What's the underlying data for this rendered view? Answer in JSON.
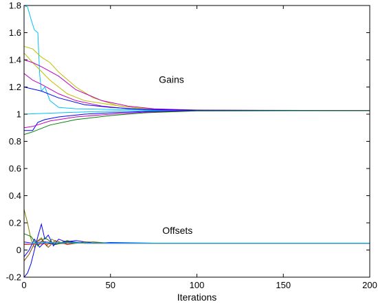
{
  "chart_data": {
    "type": "line",
    "title": "",
    "xlabel": "Iterations",
    "ylabel": "",
    "xlim": [
      0,
      200
    ],
    "ylim": [
      -0.2,
      1.8
    ],
    "grid": false,
    "legend": "none",
    "xticks": [
      {
        "value": 0,
        "label": "0"
      },
      {
        "value": 50,
        "label": "50"
      },
      {
        "value": 100,
        "label": "100"
      },
      {
        "value": 150,
        "label": "150"
      },
      {
        "value": 200,
        "label": "200"
      }
    ],
    "yticks": [
      {
        "value": -0.2,
        "label": "-0.2"
      },
      {
        "value": 0,
        "label": "0"
      },
      {
        "value": 0.2,
        "label": "0.2"
      },
      {
        "value": 0.4,
        "label": "0.4"
      },
      {
        "value": 0.6,
        "label": "0.6"
      },
      {
        "value": 0.8,
        "label": "0.8"
      },
      {
        "value": 1,
        "label": "1"
      },
      {
        "value": 1.2,
        "label": "1.2"
      },
      {
        "value": 1.4,
        "label": "1.4"
      },
      {
        "value": 1.6,
        "label": "1.6"
      },
      {
        "value": 1.8,
        "label": "1.8"
      }
    ],
    "annotations": [
      {
        "text": "Gains",
        "x": 78,
        "y": 1.23
      },
      {
        "text": "Offsets",
        "x": 80,
        "y": 0.12
      }
    ],
    "series": [
      {
        "group": "gains",
        "color": "#00bfff",
        "points": [
          [
            0,
            1.8
          ],
          [
            2,
            1.79
          ],
          [
            4,
            1.7
          ],
          [
            6,
            1.62
          ],
          [
            8,
            1.6
          ],
          [
            9,
            1.3
          ],
          [
            10,
            1.17
          ],
          [
            12,
            1.2
          ],
          [
            15,
            1.1
          ],
          [
            20,
            1.05
          ],
          [
            30,
            1.04
          ],
          [
            50,
            1.035
          ],
          [
            80,
            1.03
          ],
          [
            120,
            1.028
          ],
          [
            200,
            1.027
          ]
        ]
      },
      {
        "group": "gains",
        "color": "#00bfff",
        "points": [
          [
            0,
            1.0
          ],
          [
            10,
            1.005
          ],
          [
            25,
            1.012
          ],
          [
            40,
            1.018
          ],
          [
            60,
            1.024
          ],
          [
            80,
            1.026
          ],
          [
            120,
            1.027
          ],
          [
            200,
            1.027
          ]
        ]
      },
      {
        "group": "gains",
        "color": "#bfbf00",
        "points": [
          [
            0,
            1.5
          ],
          [
            5,
            1.48
          ],
          [
            10,
            1.42
          ],
          [
            15,
            1.38
          ],
          [
            20,
            1.31
          ],
          [
            30,
            1.2
          ],
          [
            40,
            1.12
          ],
          [
            55,
            1.06
          ],
          [
            70,
            1.04
          ],
          [
            90,
            1.032
          ],
          [
            120,
            1.028
          ],
          [
            200,
            1.027
          ]
        ]
      },
      {
        "group": "gains",
        "color": "#bfbf00",
        "points": [
          [
            0,
            1.45
          ],
          [
            5,
            1.38
          ],
          [
            15,
            1.25
          ],
          [
            25,
            1.15
          ],
          [
            35,
            1.1
          ],
          [
            50,
            1.07
          ],
          [
            65,
            1.045
          ],
          [
            80,
            1.035
          ],
          [
            110,
            1.029
          ],
          [
            200,
            1.027
          ]
        ]
      },
      {
        "group": "gains",
        "color": "#bf00bf",
        "points": [
          [
            0,
            1.4
          ],
          [
            5,
            1.38
          ],
          [
            10,
            1.35
          ],
          [
            20,
            1.28
          ],
          [
            30,
            1.18
          ],
          [
            45,
            1.1
          ],
          [
            60,
            1.06
          ],
          [
            75,
            1.04
          ],
          [
            100,
            1.03
          ],
          [
            200,
            1.027
          ]
        ]
      },
      {
        "group": "gains",
        "color": "#bf00bf",
        "points": [
          [
            0,
            1.3
          ],
          [
            5,
            1.25
          ],
          [
            10,
            1.22
          ],
          [
            20,
            1.15
          ],
          [
            30,
            1.1
          ],
          [
            45,
            1.06
          ],
          [
            60,
            1.04
          ],
          [
            80,
            1.032
          ],
          [
            110,
            1.028
          ],
          [
            200,
            1.027
          ]
        ]
      },
      {
        "group": "gains",
        "color": "#0000ff",
        "points": [
          [
            0,
            1.2
          ],
          [
            10,
            1.17
          ],
          [
            20,
            1.12
          ],
          [
            35,
            1.07
          ],
          [
            50,
            1.05
          ],
          [
            70,
            1.035
          ],
          [
            100,
            1.029
          ],
          [
            200,
            1.027
          ]
        ]
      },
      {
        "group": "gains",
        "color": "#0000ff",
        "points": [
          [
            0,
            0.88
          ],
          [
            5,
            0.88
          ],
          [
            8,
            0.94
          ],
          [
            12,
            0.96
          ],
          [
            20,
            0.98
          ],
          [
            35,
            1.0
          ],
          [
            50,
            1.01
          ],
          [
            70,
            1.02
          ],
          [
            100,
            1.026
          ],
          [
            200,
            1.027
          ]
        ]
      },
      {
        "group": "gains",
        "color": "#bf00bf",
        "points": [
          [
            0,
            0.9
          ],
          [
            5,
            0.91
          ],
          [
            15,
            0.95
          ],
          [
            30,
            0.98
          ],
          [
            50,
            1.0
          ],
          [
            70,
            1.015
          ],
          [
            100,
            1.025
          ],
          [
            200,
            1.027
          ]
        ]
      },
      {
        "group": "gains",
        "color": "#008000",
        "points": [
          [
            0,
            0.85
          ],
          [
            5,
            0.87
          ],
          [
            15,
            0.92
          ],
          [
            30,
            0.96
          ],
          [
            50,
            0.99
          ],
          [
            70,
            1.01
          ],
          [
            100,
            1.024
          ],
          [
            200,
            1.027
          ]
        ]
      },
      {
        "group": "offsets",
        "color": "#bf00bf",
        "points": [
          [
            0,
            0.06
          ],
          [
            5,
            0.05
          ],
          [
            10,
            0.06
          ],
          [
            20,
            0.055
          ],
          [
            40,
            0.05
          ],
          [
            80,
            0.05
          ],
          [
            200,
            0.05
          ]
        ]
      },
      {
        "group": "offsets",
        "color": "#ff0000",
        "points": [
          [
            0,
            0.04
          ],
          [
            10,
            0.045
          ],
          [
            30,
            0.05
          ],
          [
            60,
            0.05
          ],
          [
            200,
            0.05
          ]
        ]
      },
      {
        "group": "offsets",
        "color": "#808000",
        "points": [
          [
            0,
            0.3
          ],
          [
            2,
            0.2
          ],
          [
            4,
            0.08
          ],
          [
            6,
            0.02
          ],
          [
            8,
            0.07
          ],
          [
            10,
            0.09
          ],
          [
            13,
            0.03
          ],
          [
            16,
            0.08
          ],
          [
            20,
            0.05
          ],
          [
            25,
            0.07
          ],
          [
            30,
            0.05
          ],
          [
            40,
            0.06
          ],
          [
            50,
            0.05
          ],
          [
            80,
            0.05
          ],
          [
            200,
            0.05
          ]
        ]
      },
      {
        "group": "offsets",
        "color": "#0000ff",
        "points": [
          [
            0,
            -0.2
          ],
          [
            2,
            -0.17
          ],
          [
            4,
            -0.1
          ],
          [
            6,
            0.0
          ],
          [
            8,
            0.1
          ],
          [
            10,
            0.19
          ],
          [
            12,
            0.08
          ],
          [
            14,
            0.11
          ],
          [
            17,
            0.03
          ],
          [
            20,
            0.08
          ],
          [
            24,
            0.06
          ],
          [
            30,
            0.07
          ],
          [
            40,
            0.05
          ],
          [
            50,
            0.055
          ],
          [
            80,
            0.05
          ],
          [
            200,
            0.05
          ]
        ]
      },
      {
        "group": "offsets",
        "color": "#0000ff",
        "points": [
          [
            0,
            -0.05
          ],
          [
            3,
            0.0
          ],
          [
            6,
            0.08
          ],
          [
            9,
            0.02
          ],
          [
            12,
            0.06
          ],
          [
            18,
            0.04
          ],
          [
            25,
            0.065
          ],
          [
            35,
            0.05
          ],
          [
            60,
            0.05
          ],
          [
            200,
            0.05
          ]
        ]
      },
      {
        "group": "offsets",
        "color": "#8b4513",
        "points": [
          [
            0,
            -0.08
          ],
          [
            3,
            -0.03
          ],
          [
            6,
            0.05
          ],
          [
            10,
            0.08
          ],
          [
            14,
            0.02
          ],
          [
            18,
            0.07
          ],
          [
            25,
            0.04
          ],
          [
            35,
            0.06
          ],
          [
            50,
            0.05
          ],
          [
            200,
            0.05
          ]
        ]
      },
      {
        "group": "offsets",
        "color": "#008000",
        "points": [
          [
            0,
            0.12
          ],
          [
            4,
            0.1
          ],
          [
            8,
            0.03
          ],
          [
            12,
            0.09
          ],
          [
            18,
            0.04
          ],
          [
            25,
            0.06
          ],
          [
            35,
            0.05
          ],
          [
            60,
            0.05
          ],
          [
            200,
            0.05
          ]
        ]
      },
      {
        "group": "offsets",
        "color": "#00bfff",
        "points": [
          [
            0,
            0.05
          ],
          [
            5,
            0.05
          ],
          [
            15,
            0.055
          ],
          [
            40,
            0.05
          ],
          [
            200,
            0.05
          ]
        ]
      }
    ]
  }
}
